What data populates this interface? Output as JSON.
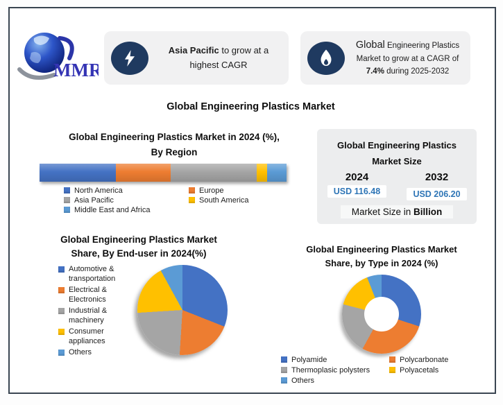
{
  "header": {
    "logo": {
      "text": "MMR"
    },
    "icon_bg_color": "#1F3A60",
    "callout_region": {
      "bold": "Asia Pacific",
      "rest": " to grow at a highest CAGR"
    },
    "callout_cagr": {
      "line1_lead": "Global",
      "line1_rest": " Engineering Plastics",
      "line2": "Market to grow at a CAGR of",
      "line3_bold": "7.4%",
      "line3_rest": " during 2025-2032"
    }
  },
  "main_title": "Global Engineering Plastics Market",
  "market_size_panel": {
    "title_line1": "Global Engineering Plastics",
    "title_line2": "Market Size",
    "col1": {
      "year": "2024",
      "value": "USD 116.48"
    },
    "col2": {
      "year": "2032",
      "value": "USD 206.20"
    },
    "footnote_regular": "Market Size in ",
    "footnote_bold": "Billion",
    "value_color": "#2E75B6",
    "unit": "USD Billion"
  },
  "chart_data": [
    {
      "id": "region-share",
      "type": "bar",
      "variant": "horizontal-stacked",
      "title": "Global Engineering Plastics Market in 2024 (%), By Region",
      "title_lines": [
        "Global Engineering Plastics Market in 2024 (%),",
        "By Region"
      ],
      "categories": [
        "North America",
        "Europe",
        "Asia Pacific",
        "South America",
        "Middle East and Africa"
      ],
      "values": [
        31,
        22,
        35,
        4,
        8
      ],
      "unit": "%",
      "colors": [
        "#4472C4",
        "#ED7D31",
        "#A5A5A5",
        "#FFC000",
        "#5B9BD5"
      ],
      "legend_position": "bottom",
      "axis": "none"
    },
    {
      "id": "enduser-share",
      "type": "pie",
      "title": "Global Engineering Plastics Market Share, By End-user in 2024(%)",
      "title_lines": [
        "Global Engineering Plastics Market",
        "Share, By End-user in 2024(%)"
      ],
      "categories": [
        "Automotive & transportation",
        "Electrical & Electronics",
        "Industrial & machinery",
        "Consumer appliances",
        "Others"
      ],
      "values": [
        31,
        20,
        23,
        18,
        8
      ],
      "unit": "%",
      "colors": [
        "#4472C4",
        "#ED7D31",
        "#A5A5A5",
        "#FFC000",
        "#5B9BD5"
      ],
      "legend_position": "left",
      "start_angle_deg": 0
    },
    {
      "id": "type-share",
      "type": "pie",
      "variant": "donut",
      "title": "Global Engineering Plastics Market Share, by Type in 2024 (%)",
      "title_lines": [
        "Global Engineering Plastics Market",
        "Share, by Type in 2024 (%)"
      ],
      "categories": [
        "Polyamide",
        "Polycarbonate",
        "Thermoplasic polysters",
        "Polyacetals",
        "Others"
      ],
      "values": [
        30,
        28,
        21,
        15,
        6
      ],
      "unit": "%",
      "colors": [
        "#4472C4",
        "#ED7D31",
        "#A5A5A5",
        "#FFC000",
        "#5B9BD5"
      ],
      "legend_position": "bottom",
      "start_angle_deg": 0
    }
  ]
}
